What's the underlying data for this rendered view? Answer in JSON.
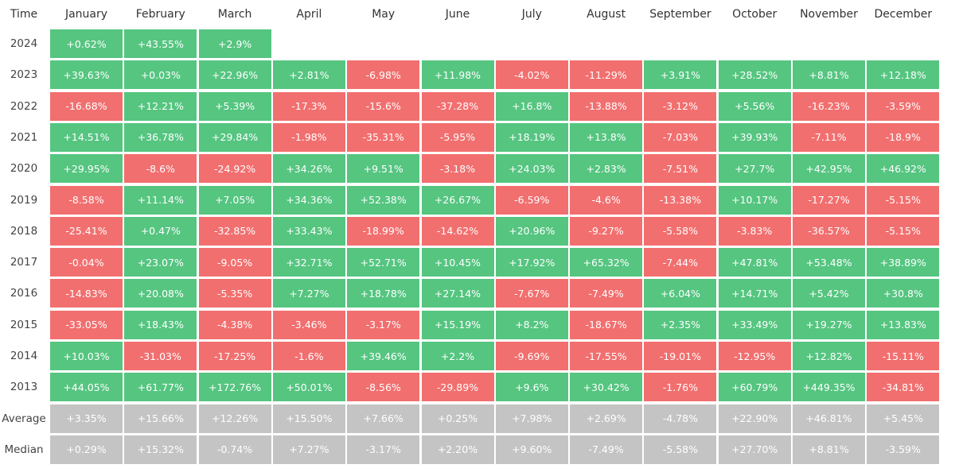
{
  "header": {
    "corner": "Time",
    "months": [
      "January",
      "February",
      "March",
      "April",
      "May",
      "June",
      "July",
      "August",
      "September",
      "October",
      "November",
      "December"
    ]
  },
  "rows": [
    {
      "label": "2024",
      "cells": [
        "+0.62%",
        "+43.55%",
        "+2.9%"
      ]
    },
    {
      "label": "2023",
      "cells": [
        "+39.63%",
        "+0.03%",
        "+22.96%",
        "+2.81%",
        "-6.98%",
        "+11.98%",
        "-4.02%",
        "-11.29%",
        "+3.91%",
        "+28.52%",
        "+8.81%",
        "+12.18%"
      ]
    },
    {
      "label": "2022",
      "cells": [
        "-16.68%",
        "+12.21%",
        "+5.39%",
        "-17.3%",
        "-15.6%",
        "-37.28%",
        "+16.8%",
        "-13.88%",
        "-3.12%",
        "+5.56%",
        "-16.23%",
        "-3.59%"
      ]
    },
    {
      "label": "2021",
      "cells": [
        "+14.51%",
        "+36.78%",
        "+29.84%",
        "-1.98%",
        "-35.31%",
        "-5.95%",
        "+18.19%",
        "+13.8%",
        "-7.03%",
        "+39.93%",
        "-7.11%",
        "-18.9%"
      ]
    },
    {
      "label": "2020",
      "cells": [
        "+29.95%",
        "-8.6%",
        "-24.92%",
        "+34.26%",
        "+9.51%",
        "-3.18%",
        "+24.03%",
        "+2.83%",
        "-7.51%",
        "+27.7%",
        "+42.95%",
        "+46.92%"
      ]
    },
    {
      "label": "2019",
      "cells": [
        "-8.58%",
        "+11.14%",
        "+7.05%",
        "+34.36%",
        "+52.38%",
        "+26.67%",
        "-6.59%",
        "-4.6%",
        "-13.38%",
        "+10.17%",
        "-17.27%",
        "-5.15%"
      ]
    },
    {
      "label": "2018",
      "cells": [
        "-25.41%",
        "+0.47%",
        "-32.85%",
        "+33.43%",
        "-18.99%",
        "-14.62%",
        "+20.96%",
        "-9.27%",
        "-5.58%",
        "-3.83%",
        "-36.57%",
        "-5.15%"
      ]
    },
    {
      "label": "2017",
      "cells": [
        "-0.04%",
        "+23.07%",
        "-9.05%",
        "+32.71%",
        "+52.71%",
        "+10.45%",
        "+17.92%",
        "+65.32%",
        "-7.44%",
        "+47.81%",
        "+53.48%",
        "+38.89%"
      ]
    },
    {
      "label": "2016",
      "cells": [
        "-14.83%",
        "+20.08%",
        "-5.35%",
        "+7.27%",
        "+18.78%",
        "+27.14%",
        "-7.67%",
        "-7.49%",
        "+6.04%",
        "+14.71%",
        "+5.42%",
        "+30.8%"
      ]
    },
    {
      "label": "2015",
      "cells": [
        "-33.05%",
        "+18.43%",
        "-4.38%",
        "-3.46%",
        "-3.17%",
        "+15.19%",
        "+8.2%",
        "-18.67%",
        "+2.35%",
        "+33.49%",
        "+19.27%",
        "+13.83%"
      ]
    },
    {
      "label": "2014",
      "cells": [
        "+10.03%",
        "-31.03%",
        "-17.25%",
        "-1.6%",
        "+39.46%",
        "+2.2%",
        "-9.69%",
        "-17.55%",
        "-19.01%",
        "-12.95%",
        "+12.82%",
        "-15.11%"
      ]
    },
    {
      "label": "2013",
      "cells": [
        "+44.05%",
        "+61.77%",
        "+172.76%",
        "+50.01%",
        "-8.56%",
        "-29.89%",
        "+9.6%",
        "+30.42%",
        "-1.76%",
        "+60.79%",
        "+449.35%",
        "-34.81%"
      ]
    }
  ],
  "summary": [
    {
      "label": "Average",
      "cells": [
        "+3.35%",
        "+15.66%",
        "+12.26%",
        "+15.50%",
        "+7.66%",
        "+0.25%",
        "+7.98%",
        "+2.69%",
        "-4.78%",
        "+22.90%",
        "+46.81%",
        "+5.45%"
      ]
    },
    {
      "label": "Median",
      "cells": [
        "+0.29%",
        "+15.32%",
        "-0.74%",
        "+7.27%",
        "-3.17%",
        "+2.20%",
        "+9.60%",
        "-7.49%",
        "-5.58%",
        "+27.70%",
        "+8.81%",
        "-3.59%"
      ]
    }
  ],
  "colors": {
    "positive": "#55c580",
    "negative": "#f26f6f",
    "summary": "#c4c4c4"
  }
}
